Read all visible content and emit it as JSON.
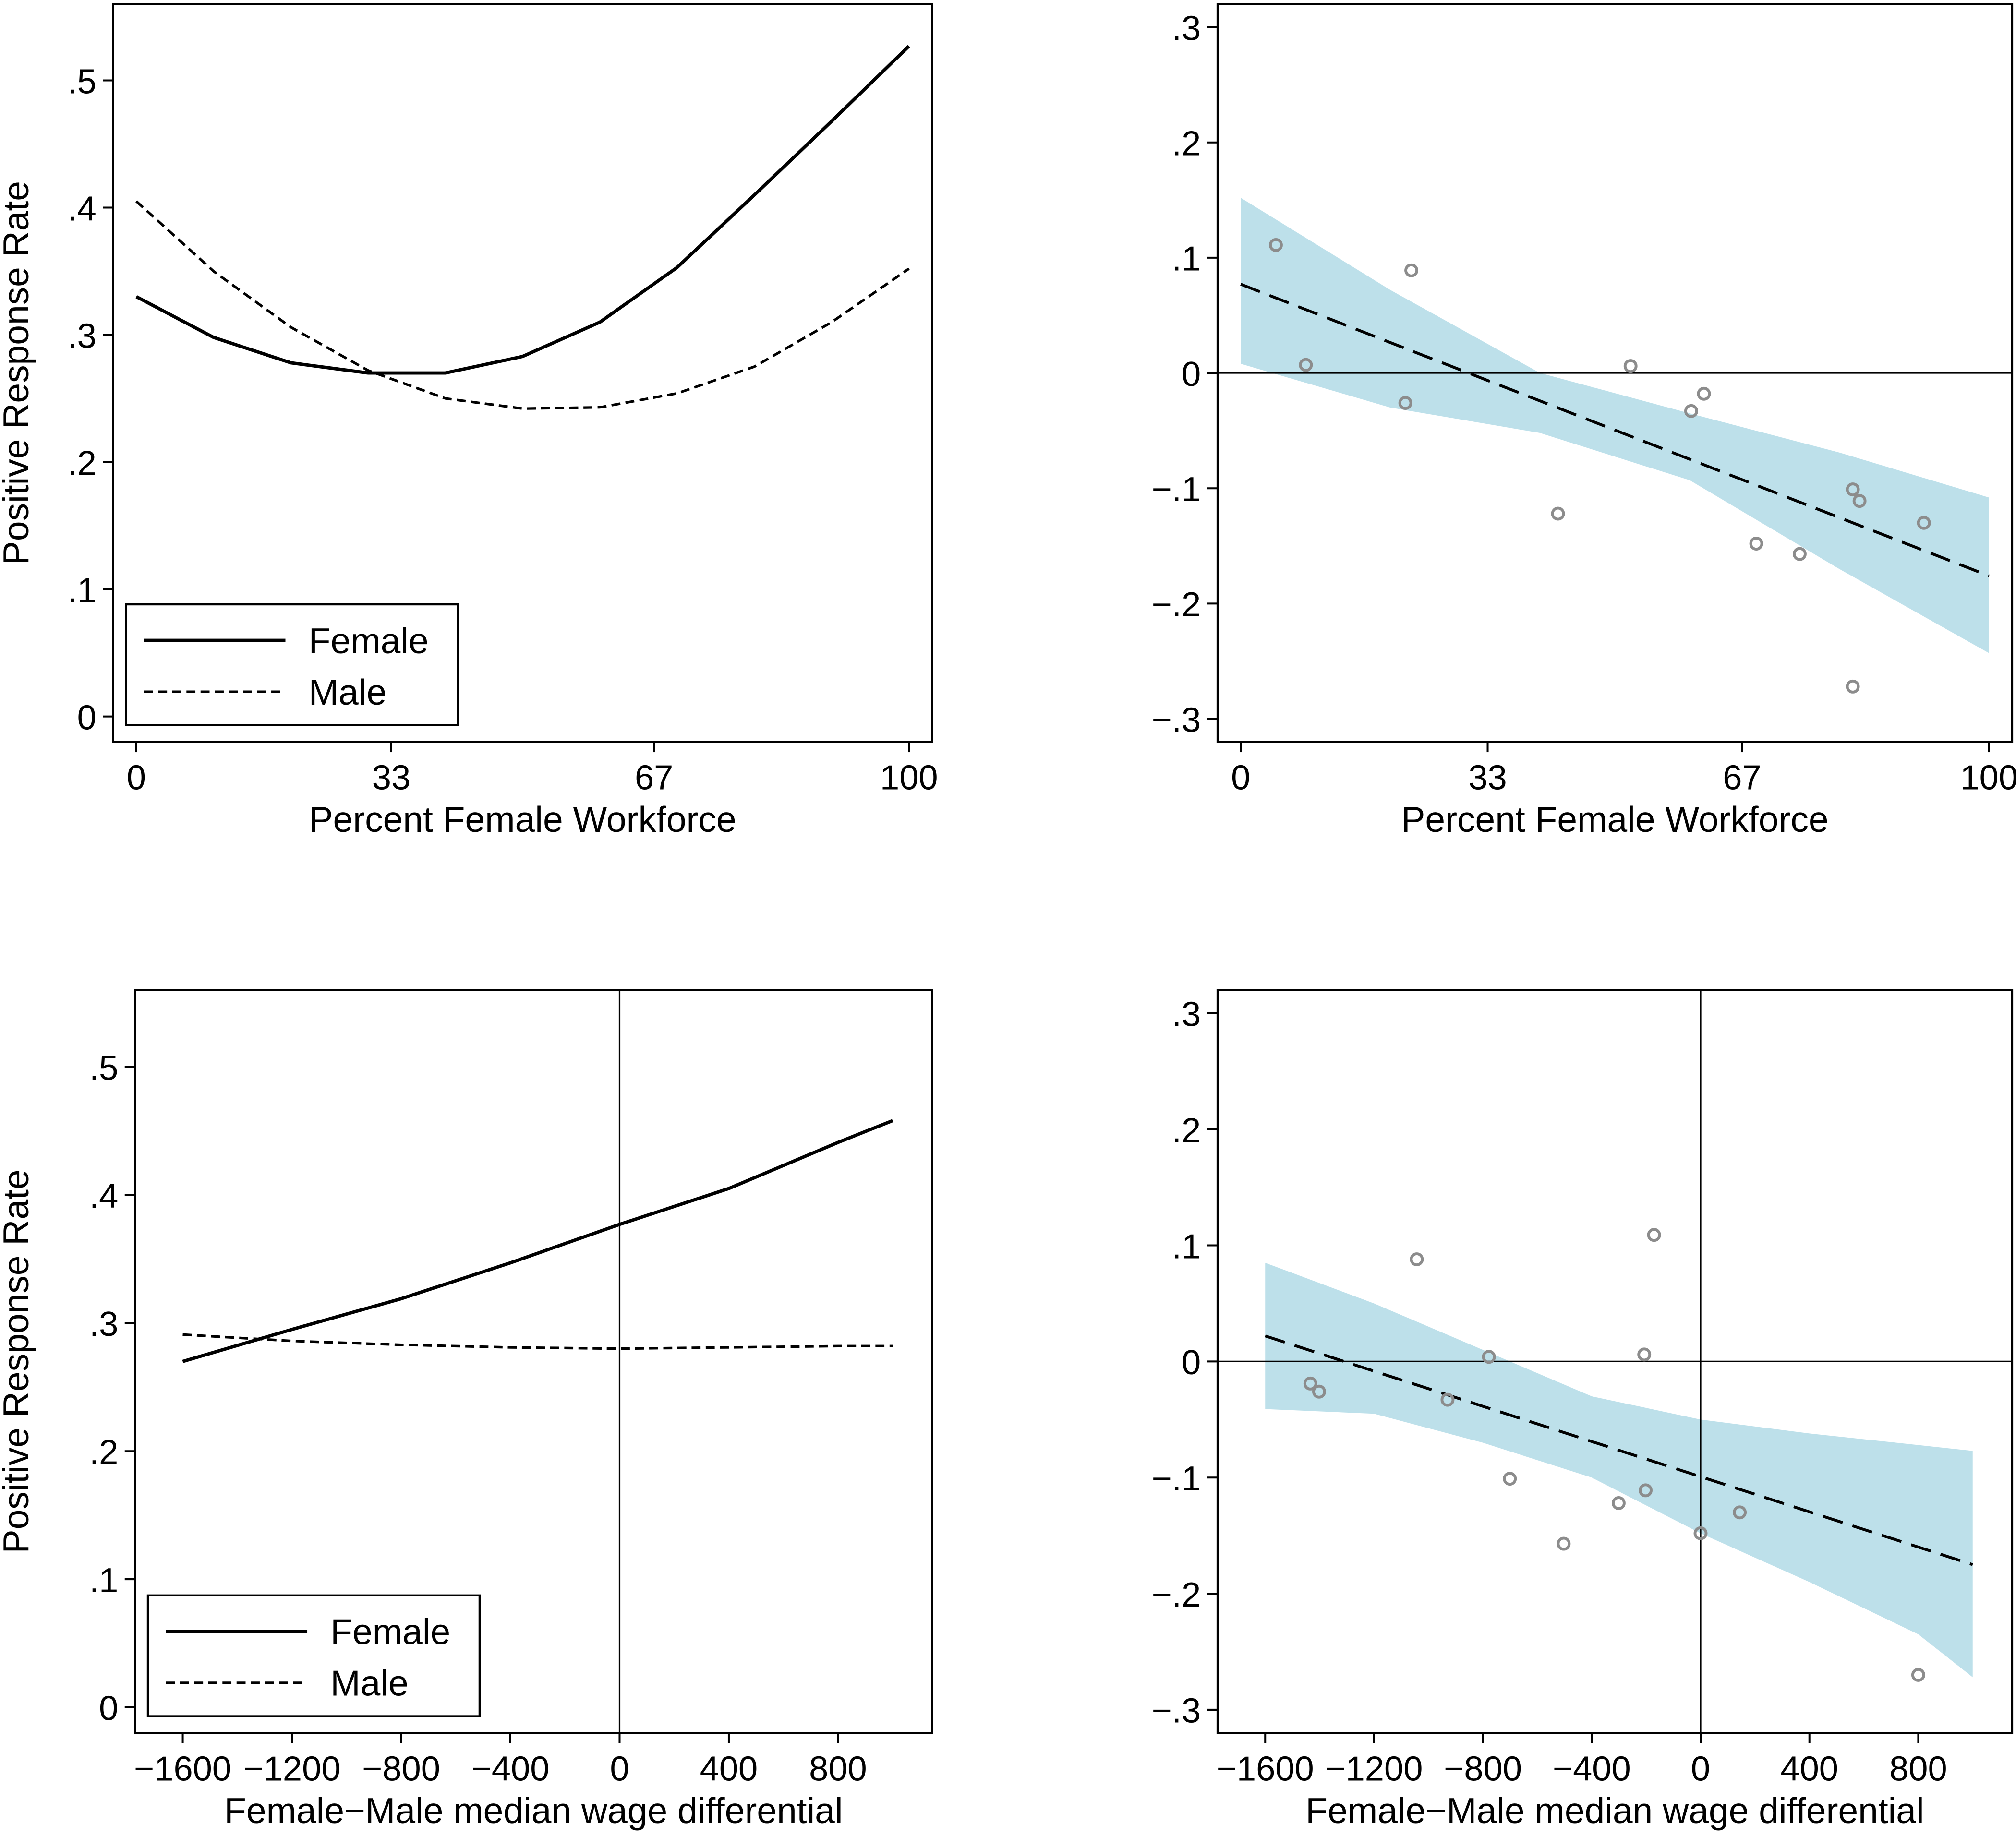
{
  "chart_data": [
    {
      "type": "line",
      "panel": "top-left",
      "xlabel": "Percent Female Workforce",
      "ylabel": "Positive Response Rate",
      "xlim": [
        0,
        100
      ],
      "ylim": [
        -0.02,
        0.56
      ],
      "xticks": [
        {
          "v": 0,
          "label": "0"
        },
        {
          "v": 33,
          "label": "33"
        },
        {
          "v": 67,
          "label": "67"
        },
        {
          "v": 100,
          "label": "100"
        }
      ],
      "yticks": [
        {
          "v": 0,
          "label": "0"
        },
        {
          "v": 0.1,
          "label": ".1"
        },
        {
          "v": 0.2,
          "label": ".2"
        },
        {
          "v": 0.3,
          "label": ".3"
        },
        {
          "v": 0.4,
          "label": ".4"
        },
        {
          "v": 0.5,
          "label": ".5"
        }
      ],
      "legend": {
        "position": "bottom-left",
        "entries": [
          "Female",
          "Male"
        ]
      },
      "x": [
        0,
        10,
        20,
        30,
        40,
        50,
        60,
        70,
        80,
        90,
        100
      ],
      "series": [
        {
          "name": "Female",
          "style": "solid",
          "values": [
            0.33,
            0.298,
            0.278,
            0.27,
            0.27,
            0.283,
            0.31,
            0.353,
            0.41,
            0.468,
            0.527
          ]
        },
        {
          "name": "Male",
          "style": "dashed",
          "values": [
            0.405,
            0.35,
            0.306,
            0.272,
            0.25,
            0.242,
            0.243,
            0.254,
            0.275,
            0.31,
            0.352
          ]
        }
      ]
    },
    {
      "type": "scatter",
      "panel": "top-right",
      "xlabel": "Percent Female Workforce",
      "xlim": [
        0,
        100
      ],
      "ylim": [
        -0.32,
        0.32
      ],
      "xticks": [
        {
          "v": 0,
          "label": "0"
        },
        {
          "v": 33,
          "label": "33"
        },
        {
          "v": 67,
          "label": "67"
        },
        {
          "v": 100,
          "label": "100"
        }
      ],
      "yticks": [
        {
          "v": -0.3,
          "label": "−.3"
        },
        {
          "v": -0.2,
          "label": "−.2"
        },
        {
          "v": -0.1,
          "label": "−.1"
        },
        {
          "v": 0,
          "label": "0"
        },
        {
          "v": 0.1,
          "label": ".1"
        },
        {
          "v": 0.2,
          "label": ".2"
        },
        {
          "v": 0.3,
          "label": ".3"
        }
      ],
      "refline_y": 0,
      "fit": {
        "x": [
          0,
          100
        ],
        "y": [
          0.077,
          -0.176
        ]
      },
      "band": {
        "x": [
          0,
          20,
          40,
          60,
          80,
          100
        ],
        "lower": [
          0.008,
          -0.03,
          -0.052,
          -0.093,
          -0.17,
          -0.243
        ],
        "upper": [
          0.152,
          0.072,
          0.0,
          -0.035,
          -0.069,
          -0.108
        ]
      },
      "points": [
        [
          4.7,
          0.111
        ],
        [
          8.7,
          0.007
        ],
        [
          22.8,
          0.089
        ],
        [
          22,
          -0.026
        ],
        [
          42.4,
          -0.122
        ],
        [
          52.1,
          0.006
        ],
        [
          60.2,
          -0.033
        ],
        [
          61.9,
          -0.018
        ],
        [
          68.9,
          -0.148
        ],
        [
          74.7,
          -0.157
        ],
        [
          81.8,
          -0.101
        ],
        [
          82.7,
          -0.111
        ],
        [
          81.8,
          -0.272
        ],
        [
          91.3,
          -0.13
        ]
      ]
    },
    {
      "type": "line",
      "panel": "bottom-left",
      "xlabel": "Female−Male median wage differential",
      "ylabel": "Positive Response Rate",
      "xlim": [
        -1690,
        1060
      ],
      "ylim": [
        -0.02,
        0.56
      ],
      "xticks": [
        {
          "v": -1600,
          "label": "−1600"
        },
        {
          "v": -1200,
          "label": "−1200"
        },
        {
          "v": -800,
          "label": "−800"
        },
        {
          "v": -400,
          "label": "−400"
        },
        {
          "v": 0,
          "label": "0"
        },
        {
          "v": 400,
          "label": "400"
        },
        {
          "v": 800,
          "label": "800"
        }
      ],
      "yticks": [
        {
          "v": 0,
          "label": "0"
        },
        {
          "v": 0.1,
          "label": ".1"
        },
        {
          "v": 0.2,
          "label": ".2"
        },
        {
          "v": 0.3,
          "label": ".3"
        },
        {
          "v": 0.4,
          "label": ".4"
        },
        {
          "v": 0.5,
          "label": ".5"
        }
      ],
      "refline_x": 0,
      "legend": {
        "position": "bottom-left",
        "entries": [
          "Female",
          "Male"
        ]
      },
      "x": [
        -1600,
        -1200,
        -800,
        -400,
        0,
        400,
        800,
        1000
      ],
      "series": [
        {
          "name": "Female",
          "style": "solid",
          "values": [
            0.27,
            0.295,
            0.319,
            0.347,
            0.377,
            0.405,
            0.441,
            0.458
          ]
        },
        {
          "name": "Male",
          "style": "dashed",
          "values": [
            0.291,
            0.286,
            0.283,
            0.281,
            0.28,
            0.281,
            0.282,
            0.282
          ]
        }
      ]
    },
    {
      "type": "scatter",
      "panel": "bottom-right",
      "xlabel": "Female−Male median wage differential",
      "xlim": [
        -1690,
        1060
      ],
      "ylim": [
        -0.32,
        0.32
      ],
      "xticks": [
        {
          "v": -1600,
          "label": "−1600"
        },
        {
          "v": -1200,
          "label": "−1200"
        },
        {
          "v": -800,
          "label": "−800"
        },
        {
          "v": -400,
          "label": "−400"
        },
        {
          "v": 0,
          "label": "0"
        },
        {
          "v": 400,
          "label": "400"
        },
        {
          "v": 800,
          "label": "800"
        }
      ],
      "yticks": [
        {
          "v": -0.3,
          "label": "−.3"
        },
        {
          "v": -0.2,
          "label": "−.2"
        },
        {
          "v": -0.1,
          "label": "−.1"
        },
        {
          "v": 0,
          "label": "0"
        },
        {
          "v": 0.1,
          "label": ".1"
        },
        {
          "v": 0.2,
          "label": ".2"
        },
        {
          "v": 0.3,
          "label": ".3"
        }
      ],
      "refline_y": 0,
      "refline_x": 0,
      "fit": {
        "x": [
          -1600,
          1000
        ],
        "y": [
          0.022,
          -0.175
        ]
      },
      "band": {
        "x": [
          -1600,
          -1200,
          -800,
          -400,
          0,
          400,
          800,
          1000
        ],
        "lower": [
          -0.041,
          -0.045,
          -0.07,
          -0.1,
          -0.148,
          -0.19,
          -0.235,
          -0.272
        ],
        "upper": [
          0.085,
          0.05,
          0.01,
          -0.03,
          -0.05,
          -0.062,
          -0.072,
          -0.077
        ]
      },
      "points": [
        [
          -1434,
          -0.019
        ],
        [
          -1402,
          -0.026
        ],
        [
          -1043,
          0.088
        ],
        [
          -930,
          -0.033
        ],
        [
          -778,
          0.004
        ],
        [
          -701,
          -0.101
        ],
        [
          -503,
          -0.157
        ],
        [
          -301,
          -0.122
        ],
        [
          -202,
          -0.111
        ],
        [
          -207,
          0.006
        ],
        [
          -171,
          0.109
        ],
        [
          0,
          -0.148
        ],
        [
          144,
          -0.13
        ],
        [
          800,
          -0.27
        ]
      ]
    }
  ],
  "colors": {
    "band": "#bde0ea",
    "point": "#8c8c8c",
    "line": "#000000"
  }
}
